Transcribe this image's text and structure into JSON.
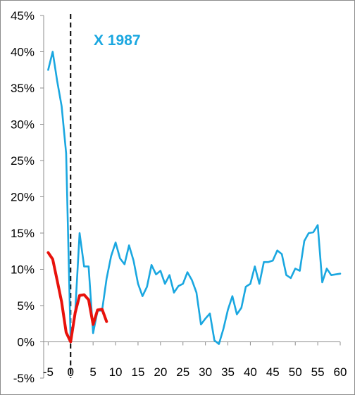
{
  "chart_data": {
    "type": "line",
    "title": "",
    "xlabel": "",
    "ylabel": "",
    "xlim": [
      -6,
      60
    ],
    "ylim": [
      -0.05,
      0.45
    ],
    "x_ticks": [
      -5,
      0,
      5,
      10,
      15,
      20,
      25,
      30,
      35,
      40,
      45,
      50,
      55,
      60
    ],
    "x_tick_labels": [
      "-5",
      "0",
      "5",
      "10",
      "15",
      "20",
      "25",
      "30",
      "35",
      "40",
      "45",
      "50",
      "55",
      "60"
    ],
    "y_ticks": [
      -0.05,
      0,
      0.05,
      0.1,
      0.15,
      0.2,
      0.25,
      0.3,
      0.35,
      0.4,
      0.45
    ],
    "y_tick_labels": [
      "-5%",
      "0%",
      "5%",
      "10%",
      "15%",
      "20%",
      "25%",
      "30%",
      "35%",
      "40%",
      "45%"
    ],
    "grid": false,
    "legend": "none",
    "vertical_marker": {
      "x": 0,
      "style": "dashed",
      "color": "#000000"
    },
    "annotations": [
      {
        "text": "X 1987",
        "color": "#1aa7e0"
      }
    ],
    "series": [
      {
        "color": "#1aa7e0",
        "x": [
          -5,
          -4,
          -3,
          -2,
          -1,
          0,
          1,
          2,
          3,
          4,
          5,
          6,
          7,
          8,
          9,
          10,
          11,
          12,
          13,
          14,
          15,
          16,
          17,
          18,
          19,
          20,
          21,
          22,
          23,
          24,
          25,
          26,
          27,
          28,
          29,
          30,
          31,
          32,
          33,
          34,
          35,
          36,
          37,
          38,
          39,
          40,
          41,
          42,
          43,
          44,
          45,
          46,
          47,
          48,
          49,
          50,
          51,
          52,
          53,
          54,
          55,
          56,
          57,
          58,
          59,
          60
        ],
        "values": [
          0.375,
          0.4,
          0.36,
          0.325,
          0.26,
          0.0,
          0.04,
          0.15,
          0.104,
          0.104,
          0.012,
          0.043,
          0.043,
          0.087,
          0.118,
          0.137,
          0.115,
          0.107,
          0.133,
          0.112,
          0.08,
          0.063,
          0.076,
          0.106,
          0.093,
          0.098,
          0.08,
          0.092,
          0.068,
          0.077,
          0.08,
          0.096,
          0.085,
          0.068,
          0.024,
          0.032,
          0.039,
          0.002,
          -0.003,
          0.018,
          0.044,
          0.063,
          0.038,
          0.047,
          0.076,
          0.08,
          0.104,
          0.08,
          0.11,
          0.11,
          0.112,
          0.126,
          0.121,
          0.092,
          0.088,
          0.101,
          0.098,
          0.139,
          0.15,
          0.151,
          0.161,
          0.082,
          0.101,
          0.092,
          0.093,
          0.094
        ]
      },
      {
        "color": "#e8120c",
        "x": [
          -5,
          -4,
          -3,
          -2,
          -1,
          0,
          1,
          2,
          3,
          4,
          5,
          6,
          7,
          8
        ],
        "values": [
          0.123,
          0.114,
          0.085,
          0.055,
          0.013,
          0.0,
          0.04,
          0.064,
          0.065,
          0.058,
          0.024,
          0.044,
          0.045,
          0.028
        ]
      }
    ]
  }
}
